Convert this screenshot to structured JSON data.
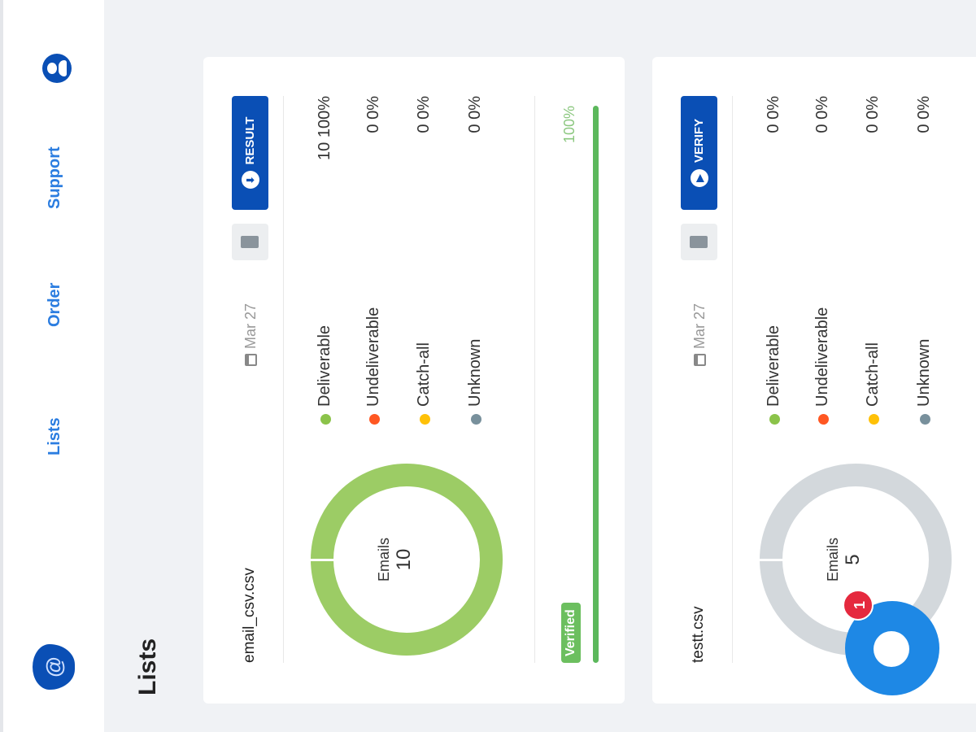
{
  "nav": {
    "logo": "@",
    "links": [
      "Lists",
      "Order",
      "Support"
    ],
    "user_icon": "user-icon"
  },
  "page_title": "Lists",
  "colors": {
    "accent": "#0a4fb5",
    "deliverable": "#8bc34a",
    "undeliverable": "#ff5722",
    "catch_all": "#ffc107",
    "unknown": "#78909c",
    "empty": "#d3d8dc"
  },
  "lists": [
    {
      "filename": "email_csv.csv",
      "date": "Mar 27",
      "action": "RESULT",
      "emails_label": "Emails",
      "emails": "10",
      "legend": [
        {
          "label": "Deliverable",
          "value": "10 100%",
          "pct": 100
        },
        {
          "label": "Undeliverable",
          "value": "0 0%",
          "pct": 0
        },
        {
          "label": "Catch-all",
          "value": "0 0%",
          "pct": 0
        },
        {
          "label": "Unknown",
          "value": "0 0%",
          "pct": 0
        }
      ],
      "status": "Verified",
      "progress_label": "100%",
      "progress": 100
    },
    {
      "filename": "testt.csv",
      "date": "Mar 27",
      "action": "VERIFY",
      "emails_label": "Emails",
      "emails": "5",
      "legend": [
        {
          "label": "Deliverable",
          "value": "0 0%",
          "pct": 0
        },
        {
          "label": "Undeliverable",
          "value": "0 0%",
          "pct": 0
        },
        {
          "label": "Catch-all",
          "value": "0 0%",
          "pct": 0
        },
        {
          "label": "Unknown",
          "value": "0 0%",
          "pct": 0
        }
      ]
    }
  ],
  "chat": {
    "unread": "1"
  }
}
